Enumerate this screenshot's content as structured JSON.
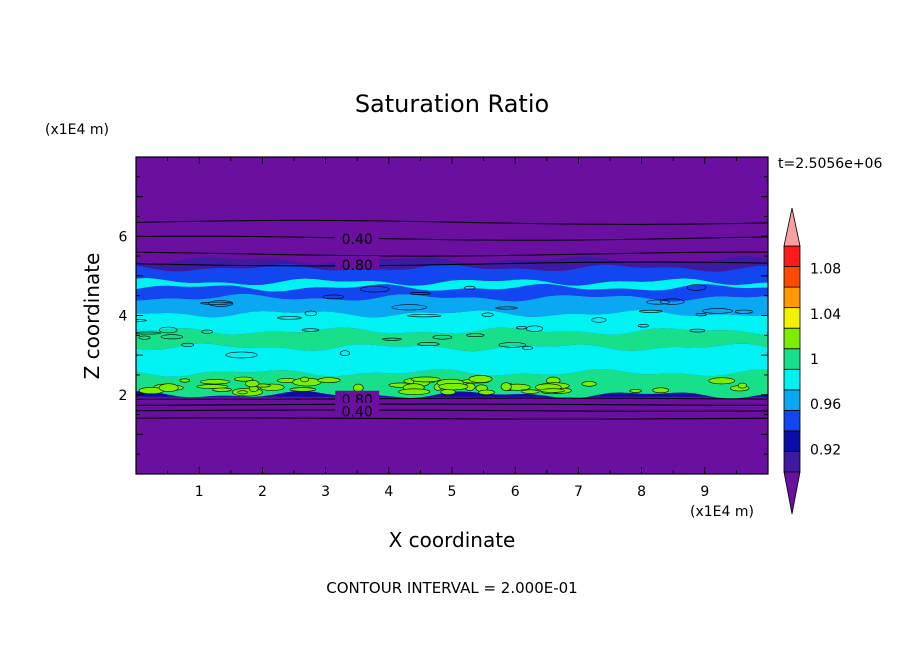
{
  "chart_data": {
    "type": "heatmap",
    "title": "Saturation Ratio",
    "xlabel": "X coordinate",
    "ylabel": "Z coordinate",
    "x_unit": "(x1E4 m)",
    "y_unit": "(x1E4 m)",
    "xlim": [
      0,
      10
    ],
    "ylim": [
      0,
      8
    ],
    "x_ticks": [
      "1",
      "2",
      "3",
      "4",
      "5",
      "6",
      "7",
      "8",
      "9"
    ],
    "y_ticks": [
      "2",
      "4",
      "6"
    ],
    "x_tick_values": [
      1,
      2,
      3,
      4,
      5,
      6,
      7,
      8,
      9
    ],
    "y_tick_values": [
      2,
      4,
      6
    ],
    "time_label": "t=2.5056e+06",
    "footer": "CONTOUR INTERVAL = 2.000E-01",
    "colorbar": {
      "levels": [
        0.9,
        0.92,
        0.94,
        0.96,
        0.98,
        1.0,
        1.02,
        1.04,
        1.06,
        1.08,
        1.1
      ],
      "labels": [
        "0.92",
        "0.96",
        "1",
        "1.04",
        "1.08"
      ],
      "label_values": [
        0.92,
        0.96,
        1.0,
        1.04,
        1.08
      ],
      "colors": [
        "#3d1aa0",
        "#0c0ca8",
        "#1246f0",
        "#0aa8f2",
        "#00f2f2",
        "#18e08a",
        "#7af000",
        "#f2f200",
        "#ff9a00",
        "#ff4a00",
        "#ff1a1a"
      ],
      "under_color": "#6a0fa0",
      "over_color": "#f6a0a0"
    },
    "background_color": "#6a0fa0",
    "bands": [
      {
        "z0": 1.95,
        "z1": 2.05,
        "color": "#0c0ca8"
      },
      {
        "z0": 2.0,
        "z1": 2.55,
        "color": "#18e08a"
      },
      {
        "z0": 2.55,
        "z1": 3.2,
        "color": "#00f2f2"
      },
      {
        "z0": 3.2,
        "z1": 3.6,
        "color": "#18e08a"
      },
      {
        "z0": 3.6,
        "z1": 4.05,
        "color": "#00f2f2"
      },
      {
        "z0": 4.05,
        "z1": 4.45,
        "color": "#0aa8f2"
      },
      {
        "z0": 4.45,
        "z1": 4.7,
        "color": "#1246f0"
      },
      {
        "z0": 4.7,
        "z1": 4.85,
        "color": "#00f2f2"
      },
      {
        "z0": 4.85,
        "z1": 5.2,
        "color": "#1246f0"
      },
      {
        "z0": 5.2,
        "z1": 5.4,
        "color": "#3d1aa0"
      }
    ],
    "contours": [
      {
        "z": 6.35,
        "label": ""
      },
      {
        "z": 5.95,
        "label": "0.40"
      },
      {
        "z": 5.55,
        "label": ""
      },
      {
        "z": 5.3,
        "label": "0.80"
      },
      {
        "z": 1.9,
        "label": "0.80"
      },
      {
        "z": 1.75,
        "label": ""
      },
      {
        "z": 1.6,
        "label": "0.40"
      },
      {
        "z": 1.4,
        "label": ""
      }
    ],
    "contour_label_x": 3.5
  }
}
